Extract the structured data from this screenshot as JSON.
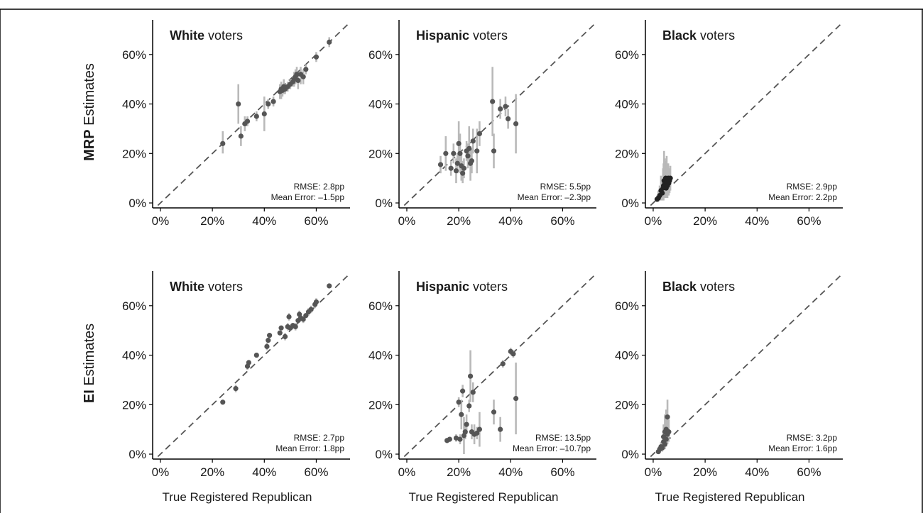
{
  "colors": {
    "point": "#555555",
    "point_dark": "#222222",
    "errorbar": "#b9b9b9",
    "axis": "#000000",
    "ref_line": "#555555"
  },
  "figure": {
    "row_labels": [
      {
        "bold": "MRP",
        "rest": " Estimates"
      },
      {
        "bold": "EI",
        "rest": " Estimates"
      }
    ],
    "x_axis_title": "True Registered Republican"
  },
  "chart_data": [
    {
      "type": "scatter",
      "row": 0,
      "col": 0,
      "title_bold": "White",
      "title_rest": " voters",
      "xlim": [
        -0.03,
        0.73
      ],
      "ylim": [
        -0.02,
        0.74
      ],
      "x_ticks": [
        0,
        0.2,
        0.4,
        0.6
      ],
      "y_ticks": [
        0,
        0.2,
        0.4,
        0.6
      ],
      "x_tick_labels": [
        "0%",
        "20%",
        "40%",
        "60%"
      ],
      "y_tick_labels": [
        "0%",
        "20%",
        "40%",
        "60%"
      ],
      "reference_line": "y=x",
      "stats": [
        "RMSE: 2.8pp",
        "Mean Error: –1.5pp"
      ],
      "points": [
        {
          "x": 0.24,
          "y": 0.24,
          "lo": 0.2,
          "hi": 0.29
        },
        {
          "x": 0.3,
          "y": 0.4,
          "lo": 0.32,
          "hi": 0.48
        },
        {
          "x": 0.31,
          "y": 0.27,
          "lo": 0.23,
          "hi": 0.31
        },
        {
          "x": 0.325,
          "y": 0.32,
          "lo": 0.29,
          "hi": 0.35
        },
        {
          "x": 0.335,
          "y": 0.33,
          "lo": 0.31,
          "hi": 0.35
        },
        {
          "x": 0.37,
          "y": 0.35,
          "lo": 0.33,
          "hi": 0.37
        },
        {
          "x": 0.4,
          "y": 0.36,
          "lo": 0.29,
          "hi": 0.43
        },
        {
          "x": 0.415,
          "y": 0.4,
          "lo": 0.38,
          "hi": 0.42
        },
        {
          "x": 0.435,
          "y": 0.41,
          "lo": 0.39,
          "hi": 0.43
        },
        {
          "x": 0.46,
          "y": 0.45,
          "lo": 0.42,
          "hi": 0.48
        },
        {
          "x": 0.465,
          "y": 0.46,
          "lo": 0.42,
          "hi": 0.49
        },
        {
          "x": 0.47,
          "y": 0.455,
          "lo": 0.43,
          "hi": 0.48
        },
        {
          "x": 0.475,
          "y": 0.47,
          "lo": 0.44,
          "hi": 0.5
        },
        {
          "x": 0.48,
          "y": 0.46,
          "lo": 0.44,
          "hi": 0.48
        },
        {
          "x": 0.49,
          "y": 0.47,
          "lo": 0.45,
          "hi": 0.49
        },
        {
          "x": 0.5,
          "y": 0.48,
          "lo": 0.46,
          "hi": 0.5
        },
        {
          "x": 0.51,
          "y": 0.49,
          "lo": 0.47,
          "hi": 0.51
        },
        {
          "x": 0.515,
          "y": 0.5,
          "lo": 0.47,
          "hi": 0.53
        },
        {
          "x": 0.52,
          "y": 0.51,
          "lo": 0.48,
          "hi": 0.54
        },
        {
          "x": 0.525,
          "y": 0.52,
          "lo": 0.49,
          "hi": 0.55
        },
        {
          "x": 0.53,
          "y": 0.495,
          "lo": 0.46,
          "hi": 0.53
        },
        {
          "x": 0.54,
          "y": 0.52,
          "lo": 0.48,
          "hi": 0.55
        },
        {
          "x": 0.55,
          "y": 0.51,
          "lo": 0.48,
          "hi": 0.54
        },
        {
          "x": 0.56,
          "y": 0.54,
          "lo": 0.52,
          "hi": 0.56
        },
        {
          "x": 0.6,
          "y": 0.59,
          "lo": 0.57,
          "hi": 0.61
        },
        {
          "x": 0.65,
          "y": 0.65,
          "lo": 0.63,
          "hi": 0.67
        }
      ]
    },
    {
      "type": "scatter",
      "row": 0,
      "col": 1,
      "title_bold": "Hispanic",
      "title_rest": " voters",
      "xlim": [
        -0.03,
        0.73
      ],
      "ylim": [
        -0.02,
        0.74
      ],
      "x_ticks": [
        0,
        0.2,
        0.4,
        0.6
      ],
      "y_ticks": [
        0,
        0.2,
        0.4,
        0.6
      ],
      "x_tick_labels": [
        "0%",
        "20%",
        "40%",
        "60%"
      ],
      "y_tick_labels": [
        "0%",
        "20%",
        "40%",
        "60%"
      ],
      "reference_line": "y=x",
      "stats": [
        "RMSE: 5.5pp",
        "Mean Error: –2.3pp"
      ],
      "points": [
        {
          "x": 0.13,
          "y": 0.155,
          "lo": 0.12,
          "hi": 0.19
        },
        {
          "x": 0.15,
          "y": 0.2,
          "lo": 0.13,
          "hi": 0.27
        },
        {
          "x": 0.17,
          "y": 0.14,
          "lo": 0.11,
          "hi": 0.17
        },
        {
          "x": 0.18,
          "y": 0.2,
          "lo": 0.16,
          "hi": 0.24
        },
        {
          "x": 0.19,
          "y": 0.13,
          "lo": 0.08,
          "hi": 0.18
        },
        {
          "x": 0.195,
          "y": 0.16,
          "lo": 0.12,
          "hi": 0.2
        },
        {
          "x": 0.2,
          "y": 0.24,
          "lo": 0.16,
          "hi": 0.33
        },
        {
          "x": 0.205,
          "y": 0.2,
          "lo": 0.12,
          "hi": 0.28
        },
        {
          "x": 0.21,
          "y": 0.15,
          "lo": 0.09,
          "hi": 0.21
        },
        {
          "x": 0.215,
          "y": 0.12,
          "lo": 0.08,
          "hi": 0.17
        },
        {
          "x": 0.22,
          "y": 0.14,
          "lo": 0.1,
          "hi": 0.18
        },
        {
          "x": 0.23,
          "y": 0.21,
          "lo": 0.17,
          "hi": 0.25
        },
        {
          "x": 0.235,
          "y": 0.19,
          "lo": 0.14,
          "hi": 0.24
        },
        {
          "x": 0.24,
          "y": 0.22,
          "lo": 0.15,
          "hi": 0.31
        },
        {
          "x": 0.245,
          "y": 0.16,
          "lo": 0.09,
          "hi": 0.23
        },
        {
          "x": 0.25,
          "y": 0.17,
          "lo": 0.12,
          "hi": 0.22
        },
        {
          "x": 0.255,
          "y": 0.25,
          "lo": 0.2,
          "hi": 0.3
        },
        {
          "x": 0.27,
          "y": 0.21,
          "lo": 0.12,
          "hi": 0.3
        },
        {
          "x": 0.28,
          "y": 0.28,
          "lo": 0.23,
          "hi": 0.33
        },
        {
          "x": 0.33,
          "y": 0.41,
          "lo": 0.27,
          "hi": 0.55
        },
        {
          "x": 0.335,
          "y": 0.21,
          "lo": 0.14,
          "hi": 0.28
        },
        {
          "x": 0.36,
          "y": 0.38,
          "lo": 0.34,
          "hi": 0.42
        },
        {
          "x": 0.38,
          "y": 0.39,
          "lo": 0.35,
          "hi": 0.43
        },
        {
          "x": 0.39,
          "y": 0.34,
          "lo": 0.3,
          "hi": 0.38
        },
        {
          "x": 0.42,
          "y": 0.32,
          "lo": 0.2,
          "hi": 0.44
        }
      ]
    },
    {
      "type": "scatter",
      "row": 0,
      "col": 2,
      "title_bold": "Black",
      "title_rest": " voters",
      "xlim": [
        -0.03,
        0.73
      ],
      "ylim": [
        -0.02,
        0.74
      ],
      "x_ticks": [
        0,
        0.2,
        0.4,
        0.6
      ],
      "y_ticks": [
        0,
        0.2,
        0.4,
        0.6
      ],
      "x_tick_labels": [
        "0%",
        "20%",
        "40%",
        "60%"
      ],
      "y_tick_labels": [
        "0%",
        "20%",
        "40%",
        "60%"
      ],
      "reference_line": "y=x",
      "stats": [
        "RMSE: 2.9pp",
        "Mean Error: 2.2pp"
      ],
      "points": [
        {
          "x": 0.015,
          "y": 0.015,
          "lo": 0.005,
          "hi": 0.03
        },
        {
          "x": 0.02,
          "y": 0.02,
          "lo": 0.005,
          "hi": 0.05
        },
        {
          "x": 0.025,
          "y": 0.03,
          "lo": 0.01,
          "hi": 0.07
        },
        {
          "x": 0.03,
          "y": 0.05,
          "lo": 0.01,
          "hi": 0.11
        },
        {
          "x": 0.035,
          "y": 0.04,
          "lo": 0.01,
          "hi": 0.09
        },
        {
          "x": 0.038,
          "y": 0.06,
          "lo": 0.01,
          "hi": 0.14
        },
        {
          "x": 0.04,
          "y": 0.07,
          "lo": 0.01,
          "hi": 0.16
        },
        {
          "x": 0.042,
          "y": 0.09,
          "lo": 0.02,
          "hi": 0.21
        },
        {
          "x": 0.045,
          "y": 0.08,
          "lo": 0.02,
          "hi": 0.18
        },
        {
          "x": 0.048,
          "y": 0.1,
          "lo": 0.03,
          "hi": 0.17
        },
        {
          "x": 0.05,
          "y": 0.06,
          "lo": 0.02,
          "hi": 0.12
        },
        {
          "x": 0.052,
          "y": 0.09,
          "lo": 0.03,
          "hi": 0.19
        },
        {
          "x": 0.055,
          "y": 0.07,
          "lo": 0.02,
          "hi": 0.14
        },
        {
          "x": 0.058,
          "y": 0.1,
          "lo": 0.04,
          "hi": 0.16
        },
        {
          "x": 0.06,
          "y": 0.08,
          "lo": 0.03,
          "hi": 0.13
        },
        {
          "x": 0.063,
          "y": 0.09,
          "lo": 0.04,
          "hi": 0.14
        },
        {
          "x": 0.066,
          "y": 0.1,
          "lo": 0.05,
          "hi": 0.15
        }
      ]
    },
    {
      "type": "scatter",
      "row": 1,
      "col": 0,
      "title_bold": "White",
      "title_rest": " voters",
      "xlim": [
        -0.03,
        0.73
      ],
      "ylim": [
        -0.02,
        0.74
      ],
      "x_ticks": [
        0,
        0.2,
        0.4,
        0.6
      ],
      "y_ticks": [
        0,
        0.2,
        0.4,
        0.6
      ],
      "x_tick_labels": [
        "0%",
        "20%",
        "40%",
        "60%"
      ],
      "y_tick_labels": [
        "0%",
        "20%",
        "40%",
        "60%"
      ],
      "reference_line": "y=x",
      "stats": [
        "RMSE: 2.7pp",
        "Mean Error: 1.8pp"
      ],
      "points": [
        {
          "x": 0.24,
          "y": 0.21,
          "lo": 0.2,
          "hi": 0.22
        },
        {
          "x": 0.29,
          "y": 0.265,
          "lo": 0.25,
          "hi": 0.28
        },
        {
          "x": 0.335,
          "y": 0.355,
          "lo": 0.34,
          "hi": 0.37
        },
        {
          "x": 0.34,
          "y": 0.37,
          "lo": 0.36,
          "hi": 0.38
        },
        {
          "x": 0.37,
          "y": 0.4,
          "lo": 0.39,
          "hi": 0.41
        },
        {
          "x": 0.41,
          "y": 0.435,
          "lo": 0.42,
          "hi": 0.45
        },
        {
          "x": 0.415,
          "y": 0.46,
          "lo": 0.45,
          "hi": 0.47
        },
        {
          "x": 0.42,
          "y": 0.48,
          "lo": 0.47,
          "hi": 0.49
        },
        {
          "x": 0.46,
          "y": 0.49,
          "lo": 0.48,
          "hi": 0.5
        },
        {
          "x": 0.465,
          "y": 0.51,
          "lo": 0.5,
          "hi": 0.52
        },
        {
          "x": 0.48,
          "y": 0.475,
          "lo": 0.46,
          "hi": 0.49
        },
        {
          "x": 0.49,
          "y": 0.515,
          "lo": 0.5,
          "hi": 0.53
        },
        {
          "x": 0.495,
          "y": 0.555,
          "lo": 0.54,
          "hi": 0.57
        },
        {
          "x": 0.5,
          "y": 0.51,
          "lo": 0.5,
          "hi": 0.52
        },
        {
          "x": 0.51,
          "y": 0.52,
          "lo": 0.51,
          "hi": 0.53
        },
        {
          "x": 0.52,
          "y": 0.515,
          "lo": 0.5,
          "hi": 0.53
        },
        {
          "x": 0.53,
          "y": 0.54,
          "lo": 0.53,
          "hi": 0.55
        },
        {
          "x": 0.535,
          "y": 0.565,
          "lo": 0.55,
          "hi": 0.58
        },
        {
          "x": 0.54,
          "y": 0.55,
          "lo": 0.54,
          "hi": 0.56
        },
        {
          "x": 0.55,
          "y": 0.545,
          "lo": 0.53,
          "hi": 0.56
        },
        {
          "x": 0.56,
          "y": 0.56,
          "lo": 0.55,
          "hi": 0.57
        },
        {
          "x": 0.57,
          "y": 0.575,
          "lo": 0.56,
          "hi": 0.59
        },
        {
          "x": 0.58,
          "y": 0.585,
          "lo": 0.57,
          "hi": 0.6
        },
        {
          "x": 0.595,
          "y": 0.605,
          "lo": 0.59,
          "hi": 0.62
        },
        {
          "x": 0.6,
          "y": 0.615,
          "lo": 0.6,
          "hi": 0.63
        },
        {
          "x": 0.65,
          "y": 0.68,
          "lo": 0.67,
          "hi": 0.69
        }
      ]
    },
    {
      "type": "scatter",
      "row": 1,
      "col": 1,
      "title_bold": "Hispanic",
      "title_rest": " voters",
      "xlim": [
        -0.03,
        0.73
      ],
      "ylim": [
        -0.02,
        0.74
      ],
      "x_ticks": [
        0,
        0.2,
        0.4,
        0.6
      ],
      "y_ticks": [
        0,
        0.2,
        0.4,
        0.6
      ],
      "x_tick_labels": [
        "0%",
        "20%",
        "40%",
        "60%"
      ],
      "y_tick_labels": [
        "0%",
        "20%",
        "40%",
        "60%"
      ],
      "reference_line": "y=x",
      "stats": [
        "RMSE: 13.5pp",
        "Mean Error: –10.7pp"
      ],
      "points": [
        {
          "x": 0.155,
          "y": 0.055,
          "lo": 0.045,
          "hi": 0.065
        },
        {
          "x": 0.165,
          "y": 0.06,
          "lo": 0.05,
          "hi": 0.07
        },
        {
          "x": 0.19,
          "y": 0.065,
          "lo": 0.05,
          "hi": 0.08
        },
        {
          "x": 0.2,
          "y": 0.21,
          "lo": 0.19,
          "hi": 0.23
        },
        {
          "x": 0.205,
          "y": 0.06,
          "lo": 0.04,
          "hi": 0.08
        },
        {
          "x": 0.21,
          "y": 0.16,
          "lo": 0.1,
          "hi": 0.22
        },
        {
          "x": 0.215,
          "y": 0.255,
          "lo": 0.23,
          "hi": 0.28
        },
        {
          "x": 0.22,
          "y": 0.075,
          "lo": 0.0,
          "hi": 0.15
        },
        {
          "x": 0.225,
          "y": 0.09,
          "lo": 0.06,
          "hi": 0.12
        },
        {
          "x": 0.23,
          "y": 0.12,
          "lo": 0.08,
          "hi": 0.16
        },
        {
          "x": 0.24,
          "y": 0.195,
          "lo": 0.17,
          "hi": 0.22
        },
        {
          "x": 0.245,
          "y": 0.315,
          "lo": 0.21,
          "hi": 0.42
        },
        {
          "x": 0.25,
          "y": 0.09,
          "lo": 0.06,
          "hi": 0.12
        },
        {
          "x": 0.255,
          "y": 0.25,
          "lo": 0.21,
          "hi": 0.29
        },
        {
          "x": 0.26,
          "y": 0.08,
          "lo": 0.04,
          "hi": 0.12
        },
        {
          "x": 0.27,
          "y": 0.085,
          "lo": 0.06,
          "hi": 0.11
        },
        {
          "x": 0.28,
          "y": 0.1,
          "lo": 0.03,
          "hi": 0.17
        },
        {
          "x": 0.335,
          "y": 0.17,
          "lo": 0.12,
          "hi": 0.22
        },
        {
          "x": 0.36,
          "y": 0.1,
          "lo": 0.05,
          "hi": 0.15
        },
        {
          "x": 0.37,
          "y": 0.365,
          "lo": 0.35,
          "hi": 0.38
        },
        {
          "x": 0.4,
          "y": 0.415,
          "lo": 0.4,
          "hi": 0.43
        },
        {
          "x": 0.41,
          "y": 0.405,
          "lo": 0.39,
          "hi": 0.42
        },
        {
          "x": 0.42,
          "y": 0.225,
          "lo": 0.08,
          "hi": 0.37
        }
      ]
    },
    {
      "type": "scatter",
      "row": 1,
      "col": 2,
      "title_bold": "Black",
      "title_rest": " voters",
      "xlim": [
        -0.03,
        0.73
      ],
      "ylim": [
        -0.02,
        0.74
      ],
      "x_ticks": [
        0,
        0.2,
        0.4,
        0.6
      ],
      "y_ticks": [
        0,
        0.2,
        0.4,
        0.6
      ],
      "x_tick_labels": [
        "0%",
        "20%",
        "40%",
        "60%"
      ],
      "y_tick_labels": [
        "0%",
        "20%",
        "40%",
        "60%"
      ],
      "reference_line": "y=x",
      "stats": [
        "RMSE: 3.2pp",
        "Mean Error: 1.6pp"
      ],
      "points": [
        {
          "x": 0.02,
          "y": 0.01,
          "lo": 0.0,
          "hi": 0.02
        },
        {
          "x": 0.025,
          "y": 0.02,
          "lo": 0.01,
          "hi": 0.03
        },
        {
          "x": 0.03,
          "y": 0.03,
          "lo": 0.02,
          "hi": 0.05
        },
        {
          "x": 0.035,
          "y": 0.025,
          "lo": 0.01,
          "hi": 0.04
        },
        {
          "x": 0.04,
          "y": 0.05,
          "lo": 0.02,
          "hi": 0.09
        },
        {
          "x": 0.04,
          "y": 0.07,
          "lo": 0.03,
          "hi": 0.12
        },
        {
          "x": 0.045,
          "y": 0.04,
          "lo": 0.02,
          "hi": 0.07
        },
        {
          "x": 0.045,
          "y": 0.09,
          "lo": 0.04,
          "hi": 0.16
        },
        {
          "x": 0.05,
          "y": 0.06,
          "lo": 0.03,
          "hi": 0.1
        },
        {
          "x": 0.05,
          "y": 0.1,
          "lo": 0.05,
          "hi": 0.18
        },
        {
          "x": 0.055,
          "y": 0.08,
          "lo": 0.04,
          "hi": 0.13
        },
        {
          "x": 0.055,
          "y": 0.15,
          "lo": 0.09,
          "hi": 0.22
        },
        {
          "x": 0.06,
          "y": 0.09,
          "lo": 0.05,
          "hi": 0.14
        }
      ]
    }
  ]
}
